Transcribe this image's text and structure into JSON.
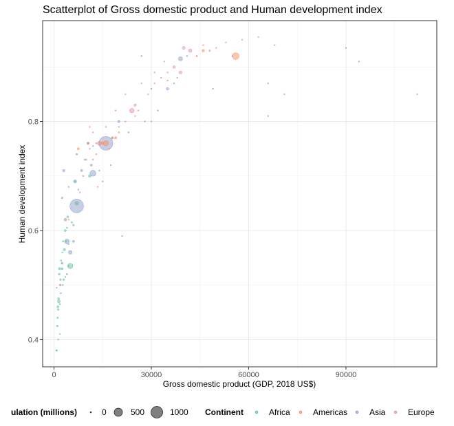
{
  "chart_data": {
    "type": "scatter",
    "title": "Scatterplot of Gross domestic product and Human development index",
    "xlabel": "Gross domestic product (GDP, 2018 US$)",
    "ylabel": "Human development index",
    "xlim": [
      -3500,
      118000
    ],
    "ylim": [
      0.35,
      0.985
    ],
    "x_ticks": [
      0,
      30000,
      60000,
      90000
    ],
    "x_tick_labels": [
      "0",
      "30000",
      "60000",
      "90000"
    ],
    "y_ticks": [
      0.4,
      0.6,
      0.8
    ],
    "y_tick_labels": [
      "0.4",
      "0.6",
      "0.8"
    ],
    "grid": true,
    "legend_position": "bottom",
    "size_legend": {
      "title": "ulation (millions)",
      "values": [
        0,
        500,
        1000
      ],
      "labels": [
        "0",
        "500",
        "1000"
      ]
    },
    "color_legend": {
      "title": "Continent",
      "labels": [
        "Africa",
        "Americas",
        "Asia",
        "Europe"
      ]
    },
    "colors": {
      "Africa": "#66c2a5",
      "Americas": "#fc8d62",
      "Asia": "#8da0cb",
      "Europe": "#e78ac3"
    },
    "series": [
      {
        "name": "Africa",
        "points": [
          [
            700,
            0.38,
            10
          ],
          [
            900,
            0.38,
            12
          ],
          [
            1000,
            0.425,
            20
          ],
          [
            1100,
            0.44,
            15
          ],
          [
            1200,
            0.46,
            30
          ],
          [
            1500,
            0.47,
            60
          ],
          [
            1400,
            0.475,
            25
          ],
          [
            1300,
            0.455,
            18
          ],
          [
            1800,
            0.465,
            12
          ],
          [
            800,
            0.495,
            10
          ],
          [
            1600,
            0.52,
            25
          ],
          [
            2000,
            0.51,
            20
          ],
          [
            1700,
            0.53,
            35
          ],
          [
            2500,
            0.53,
            28
          ],
          [
            2200,
            0.545,
            15
          ],
          [
            3000,
            0.51,
            20
          ],
          [
            3500,
            0.515,
            12
          ],
          [
            4000,
            0.52,
            15
          ],
          [
            4500,
            0.535,
            5
          ],
          [
            5000,
            0.535,
            195
          ],
          [
            2600,
            0.56,
            10
          ],
          [
            3200,
            0.565,
            40
          ],
          [
            2800,
            0.58,
            15
          ],
          [
            3800,
            0.58,
            20
          ],
          [
            3500,
            0.6,
            30
          ],
          [
            4000,
            0.605,
            10
          ],
          [
            4200,
            0.625,
            25
          ],
          [
            6000,
            0.61,
            20
          ],
          [
            7000,
            0.65,
            100
          ],
          [
            7500,
            0.675,
            8
          ],
          [
            6500,
            0.69,
            5
          ],
          [
            11000,
            0.7,
            40
          ],
          [
            14000,
            0.71,
            2
          ],
          [
            10000,
            0.73,
            4
          ],
          [
            12000,
            0.755,
            2
          ],
          [
            1800,
            0.41,
            5
          ],
          [
            1300,
            0.4,
            6
          ],
          [
            2100,
            0.485,
            8
          ],
          [
            2700,
            0.5,
            10
          ],
          [
            4500,
            0.575,
            6
          ]
        ]
      },
      {
        "name": "Americas",
        "points": [
          [
            1800,
            0.5,
            11
          ],
          [
            4500,
            0.62,
            9
          ],
          [
            7000,
            0.65,
            5
          ],
          [
            8000,
            0.67,
            10
          ],
          [
            9000,
            0.7,
            15
          ],
          [
            7500,
            0.75,
            30
          ],
          [
            10500,
            0.76,
            45
          ],
          [
            12000,
            0.73,
            8
          ],
          [
            13000,
            0.74,
            10
          ],
          [
            14000,
            0.76,
            127
          ],
          [
            15000,
            0.76,
            45
          ],
          [
            16000,
            0.76,
            209
          ],
          [
            17000,
            0.75,
            5
          ],
          [
            18000,
            0.77,
            18
          ],
          [
            19000,
            0.77,
            33
          ],
          [
            20000,
            0.78,
            3
          ],
          [
            22000,
            0.8,
            3
          ],
          [
            26000,
            0.82,
            10
          ],
          [
            17500,
            0.72,
            4
          ],
          [
            31000,
            0.87,
            3
          ],
          [
            35000,
            0.875,
            2
          ],
          [
            44000,
            0.92,
            7
          ],
          [
            46000,
            0.93,
            37
          ],
          [
            56000,
            0.92,
            327
          ],
          [
            11000,
            0.79,
            3
          ],
          [
            13500,
            0.68,
            6
          ],
          [
            9500,
            0.73,
            12
          ]
        ]
      },
      {
        "name": "Asia",
        "points": [
          [
            1900,
            0.5,
            20
          ],
          [
            2500,
            0.54,
            30
          ],
          [
            4000,
            0.58,
            160
          ],
          [
            3500,
            0.62,
            50
          ],
          [
            5000,
            0.56,
            100
          ],
          [
            6000,
            0.58,
            30
          ],
          [
            5500,
            0.615,
            15
          ],
          [
            7000,
            0.645,
            1350
          ],
          [
            6500,
            0.69,
            70
          ],
          [
            8500,
            0.71,
            30
          ],
          [
            7000,
            0.74,
            20
          ],
          [
            12000,
            0.705,
            265
          ],
          [
            11500,
            0.72,
            30
          ],
          [
            13000,
            0.76,
            10
          ],
          [
            16000,
            0.76,
            1400
          ],
          [
            15000,
            0.69,
            10
          ],
          [
            18000,
            0.77,
            30
          ],
          [
            20000,
            0.8,
            32
          ],
          [
            23000,
            0.78,
            5
          ],
          [
            28000,
            0.8,
            2
          ],
          [
            21000,
            0.59,
            10
          ],
          [
            30000,
            0.86,
            10
          ],
          [
            35000,
            0.86,
            50
          ],
          [
            37000,
            0.87,
            2
          ],
          [
            39000,
            0.915,
            126
          ],
          [
            41000,
            0.92,
            8
          ],
          [
            49000,
            0.86,
            4
          ],
          [
            55000,
            0.92,
            2
          ],
          [
            66000,
            0.87,
            4
          ],
          [
            66000,
            0.81,
            1
          ],
          [
            71000,
            0.85,
            6
          ],
          [
            90000,
            0.935,
            6
          ],
          [
            94000,
            0.91,
            1
          ],
          [
            112000,
            0.85,
            3
          ],
          [
            2500,
            0.66,
            20
          ],
          [
            3000,
            0.71,
            40
          ],
          [
            4500,
            0.68,
            8
          ],
          [
            10500,
            0.76,
            7
          ],
          [
            27000,
            0.92,
            5
          ],
          [
            32000,
            0.82,
            2
          ]
        ]
      },
      {
        "name": "Europe",
        "points": [
          [
            11000,
            0.75,
            2
          ],
          [
            12000,
            0.78,
            7
          ],
          [
            14000,
            0.76,
            4
          ],
          [
            16000,
            0.79,
            3
          ],
          [
            19000,
            0.82,
            2
          ],
          [
            22000,
            0.85,
            4
          ],
          [
            24000,
            0.82,
            144
          ],
          [
            25000,
            0.83,
            38
          ],
          [
            27000,
            0.87,
            10
          ],
          [
            29000,
            0.85,
            5
          ],
          [
            31000,
            0.89,
            4
          ],
          [
            33000,
            0.88,
            1
          ],
          [
            35000,
            0.89,
            10
          ],
          [
            37000,
            0.9,
            46
          ],
          [
            38000,
            0.88,
            11
          ],
          [
            39000,
            0.89,
            67
          ],
          [
            40000,
            0.935,
            60
          ],
          [
            42000,
            0.93,
            83
          ],
          [
            44000,
            0.92,
            9
          ],
          [
            46000,
            0.94,
            5
          ],
          [
            48000,
            0.93,
            17
          ],
          [
            50000,
            0.935,
            10
          ],
          [
            53000,
            0.945,
            5
          ],
          [
            58000,
            0.95,
            9
          ],
          [
            63000,
            0.955,
            1
          ],
          [
            68000,
            0.94,
            5
          ],
          [
            30000,
            0.8,
            2
          ],
          [
            25000,
            0.81,
            4
          ],
          [
            20000,
            0.79,
            1
          ],
          [
            34000,
            0.91,
            2
          ]
        ]
      }
    ]
  }
}
